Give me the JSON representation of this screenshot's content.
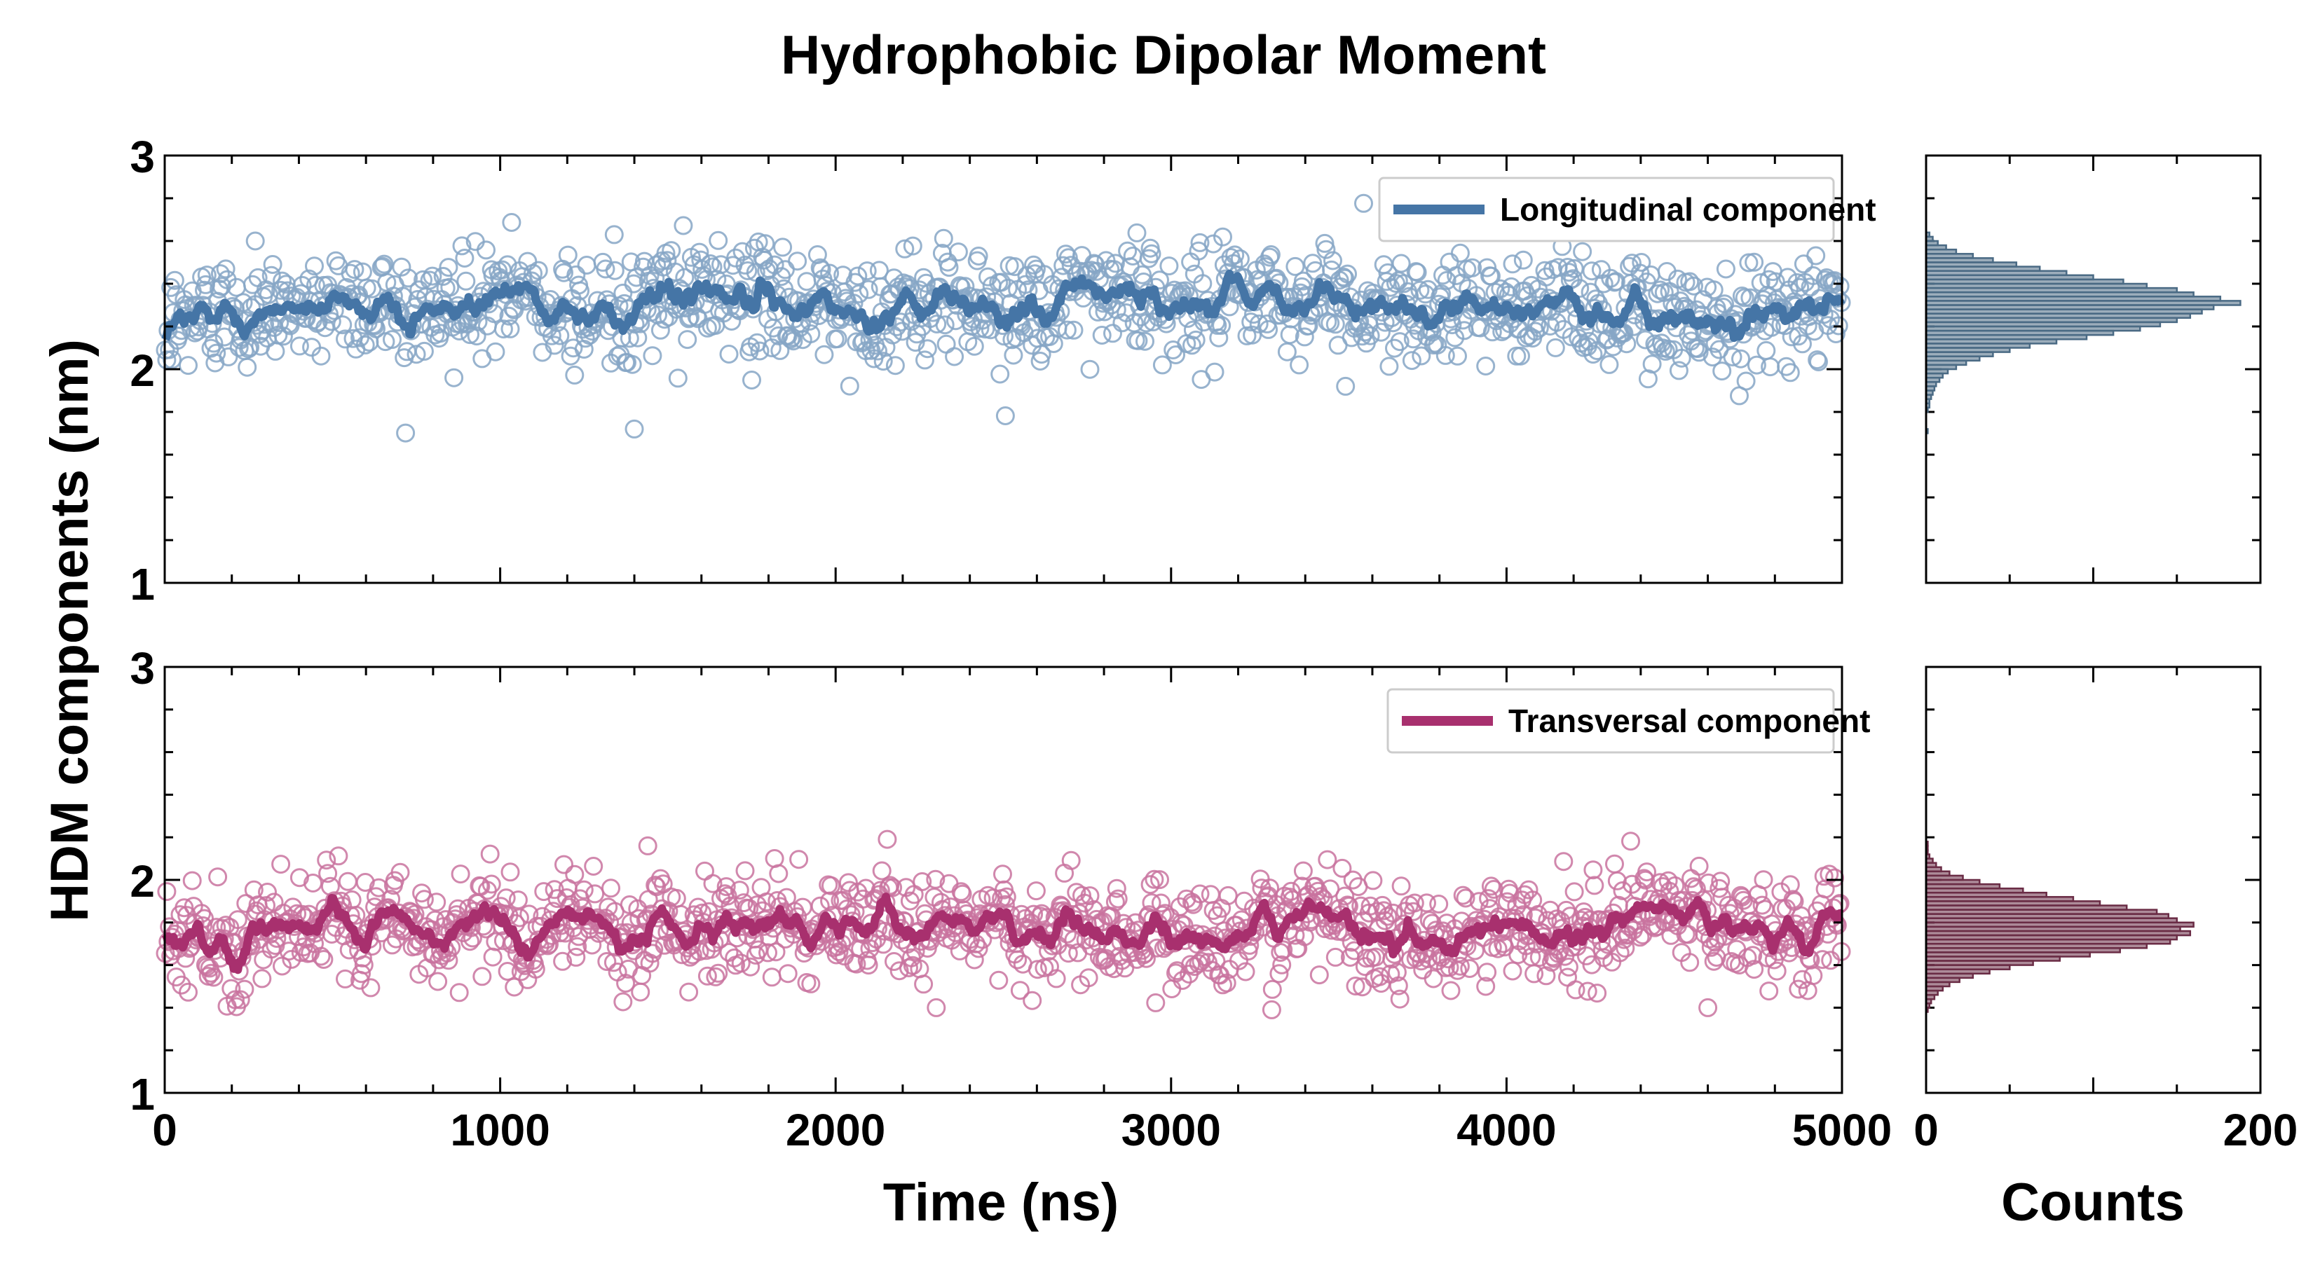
{
  "chart_data": {
    "type": "scatter",
    "title": "Hydrophobic Dipolar Moment",
    "ylabel": "HDM components (nm)",
    "xlabel_time": "Time (ns)",
    "xlabel_counts": "Counts",
    "time_axis": {
      "xlim": [
        0,
        5000
      ],
      "xticks": [
        0,
        1000,
        2000,
        3000,
        4000,
        5000
      ]
    },
    "counts_axis": {
      "xlim": [
        0,
        200
      ],
      "xticks": [
        0,
        200
      ]
    },
    "yticks": [
      1,
      2,
      3
    ],
    "ylim": [
      1,
      3
    ],
    "series": [
      {
        "name": "Longitudinal component",
        "color": "#4575a6",
        "marker_color": "#86a6c6",
        "hist_color": "#4a6a84",
        "mean": 2.31,
        "spread": 0.13,
        "initial_value": 2.15,
        "equilibration_time_ns": 250,
        "outliers": [
          [
            1400,
            1.72
          ],
          [
            1340,
            2.63
          ],
          [
            270,
            2.6
          ],
          [
            3520,
            1.92
          ]
        ],
        "histogram": {
          "bins": [
            1.7,
            1.72,
            1.74,
            1.76,
            1.78,
            1.8,
            1.82,
            1.84,
            1.86,
            1.88,
            1.9,
            1.92,
            1.94,
            1.96,
            1.98,
            2.0,
            2.02,
            2.04,
            2.06,
            2.08,
            2.1,
            2.12,
            2.14,
            2.16,
            2.18,
            2.2,
            2.22,
            2.24,
            2.26,
            2.28,
            2.3,
            2.32,
            2.34,
            2.36,
            2.38,
            2.4,
            2.42,
            2.44,
            2.46,
            2.48,
            2.5,
            2.52,
            2.54,
            2.56,
            2.58,
            2.6,
            2.62
          ],
          "counts": [
            1,
            0,
            0,
            0,
            0,
            1,
            2,
            2,
            3,
            4,
            5,
            6,
            8,
            10,
            13,
            18,
            24,
            32,
            40,
            50,
            62,
            78,
            96,
            112,
            128,
            140,
            150,
            158,
            165,
            172,
            188,
            176,
            160,
            150,
            132,
            118,
            100,
            84,
            68,
            54,
            40,
            28,
            18,
            12,
            7,
            4,
            2
          ]
        }
      },
      {
        "name": "Transversal component",
        "color": "#a8306e",
        "marker_color": "#c9739f",
        "hist_color": "#6a2c45",
        "mean": 1.78,
        "spread": 0.12,
        "initial_value": 1.78,
        "equilibration_time_ns": 0,
        "outliers": [
          [
            1440,
            2.16
          ],
          [
            3300,
            1.39
          ],
          [
            2300,
            1.4
          ],
          [
            4600,
            1.4
          ]
        ],
        "histogram": {
          "bins": [
            1.38,
            1.4,
            1.42,
            1.44,
            1.46,
            1.48,
            1.5,
            1.52,
            1.54,
            1.56,
            1.58,
            1.6,
            1.62,
            1.64,
            1.66,
            1.68,
            1.7,
            1.72,
            1.74,
            1.76,
            1.78,
            1.8,
            1.82,
            1.84,
            1.86,
            1.88,
            1.9,
            1.92,
            1.94,
            1.96,
            1.98,
            2.0,
            2.02,
            2.04,
            2.06,
            2.08,
            2.1,
            2.12,
            2.14,
            2.16
          ],
          "counts": [
            1,
            2,
            3,
            5,
            7,
            10,
            14,
            20,
            28,
            38,
            50,
            64,
            80,
            98,
            116,
            132,
            146,
            150,
            158,
            152,
            160,
            150,
            145,
            138,
            120,
            104,
            88,
            72,
            58,
            44,
            32,
            22,
            14,
            9,
            6,
            4,
            2,
            1,
            1,
            1
          ]
        }
      }
    ]
  }
}
